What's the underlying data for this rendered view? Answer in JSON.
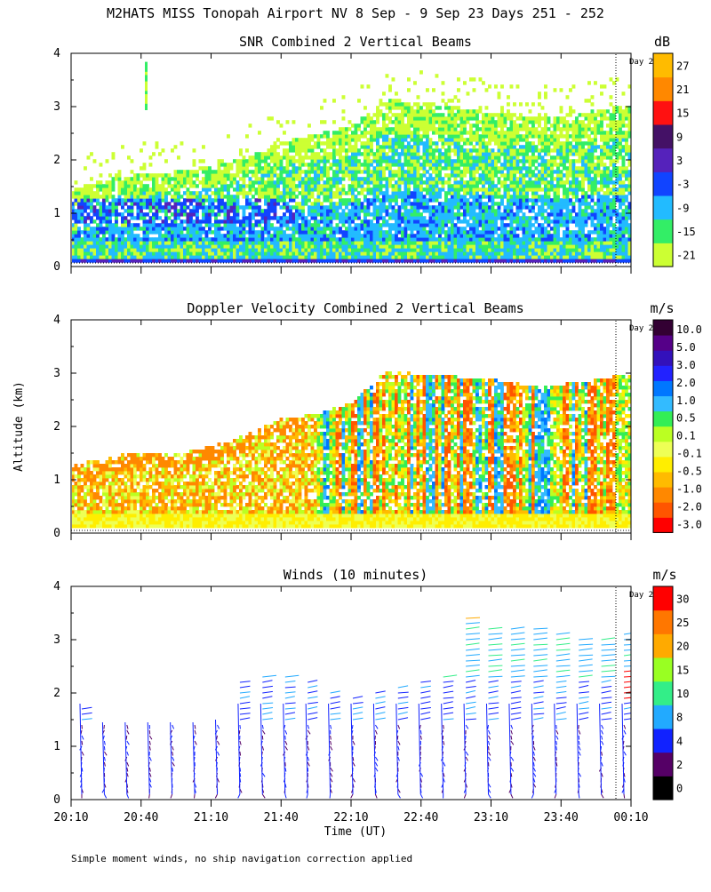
{
  "header": {
    "title": "M2HATS MISS Tonopah Airport NV   8 Sep -  9 Sep 23 Days 251 - 252"
  },
  "y_axis_label": "Altitude (km)",
  "x_axis_label": "Time (UT)",
  "x_ticks": [
    "20:10",
    "20:40",
    "21:10",
    "21:40",
    "22:10",
    "22:40",
    "23:10",
    "23:40",
    "00:10"
  ],
  "y_ticks": [
    "0",
    "1",
    "2",
    "3",
    "4"
  ],
  "day_marker_label": "Day 2",
  "footnote": "Simple moment winds, no ship navigation correction applied",
  "colors": {
    "snr": [
      "#ccff33",
      "#33ee66",
      "#22bbff",
      "#1144ff",
      "#5522bb",
      "#441166",
      "#ff1111",
      "#ff8800",
      "#ffbb00"
    ],
    "doppler": [
      "#ff0000",
      "#ff5500",
      "#ff8800",
      "#ffbb00",
      "#ffee00",
      "#eeff55",
      "#bbff22",
      "#33ee55",
      "#33bbff",
      "#0077ff",
      "#2222ff",
      "#3311bb",
      "#550088",
      "#330033"
    ],
    "winds": [
      "#000000",
      "#550066",
      "#1122ff",
      "#22aaff",
      "#33ee88",
      "#99ff22",
      "#ffaa00",
      "#ff7700",
      "#ff0000"
    ]
  },
  "chart_data": [
    {
      "type": "heatmap",
      "title": "SNR Combined 2 Vertical Beams",
      "unit": "dB",
      "xlabel": "",
      "ylabel": "Altitude (km)",
      "ylim": [
        0,
        4
      ],
      "x_ticks": [
        "20:10",
        "20:40",
        "21:10",
        "21:40",
        "22:10",
        "22:40",
        "23:10",
        "23:40",
        "00:10"
      ],
      "colorbar_ticks": [
        "27",
        "21",
        "15",
        "9",
        "3",
        "-3",
        "-9",
        "-15",
        "-21"
      ],
      "echo_top_km": [
        [
          0.0,
          1.4
        ],
        [
          0.5,
          1.6
        ],
        [
          1.0,
          1.7
        ],
        [
          1.5,
          1.75
        ],
        [
          2.0,
          1.85
        ],
        [
          2.5,
          2.0
        ],
        [
          3.0,
          2.3
        ],
        [
          3.5,
          2.45
        ],
        [
          4.0,
          2.6
        ],
        [
          4.5,
          3.1
        ],
        [
          5.0,
          3.05
        ],
        [
          5.5,
          2.95
        ],
        [
          6.0,
          2.85
        ],
        [
          6.5,
          2.8
        ],
        [
          7.0,
          2.8
        ],
        [
          7.5,
          2.9
        ],
        [
          8.0,
          3.0
        ]
      ]
    },
    {
      "type": "heatmap",
      "title": "Doppler Velocity Combined 2 Vertical Beams",
      "unit": "m/s",
      "xlabel": "",
      "ylabel": "Altitude (km)",
      "ylim": [
        0,
        4
      ],
      "x_ticks": [
        "20:10",
        "20:40",
        "21:10",
        "21:40",
        "22:10",
        "22:40",
        "23:10",
        "23:40",
        "00:10"
      ],
      "colorbar_ticks": [
        "10.0",
        "5.0",
        "3.0",
        "2.0",
        "1.0",
        "0.5",
        "0.1",
        "-0.1",
        "-0.5",
        "-1.0",
        "-2.0",
        "-3.0"
      ],
      "echo_top_km": [
        [
          0.0,
          1.25
        ],
        [
          0.5,
          1.4
        ],
        [
          1.0,
          1.5
        ],
        [
          1.5,
          1.45
        ],
        [
          2.0,
          1.6
        ],
        [
          2.5,
          1.8
        ],
        [
          3.0,
          2.1
        ],
        [
          3.5,
          2.2
        ],
        [
          4.0,
          2.4
        ],
        [
          4.5,
          3.0
        ],
        [
          5.0,
          2.95
        ],
        [
          5.5,
          2.9
        ],
        [
          6.0,
          2.85
        ],
        [
          6.5,
          2.75
        ],
        [
          7.0,
          2.75
        ],
        [
          7.5,
          2.85
        ],
        [
          8.0,
          2.95
        ]
      ]
    },
    {
      "type": "scatter",
      "title": "Winds (10 minutes)",
      "unit": "m/s",
      "xlabel": "Time (UT)",
      "ylabel": "Altitude (km)",
      "ylim": [
        0,
        4
      ],
      "x_ticks": [
        "20:10",
        "20:40",
        "21:10",
        "21:40",
        "22:10",
        "22:40",
        "23:10",
        "23:40",
        "00:10"
      ],
      "colorbar_ticks": [
        "30",
        "25",
        "20",
        "15",
        "10",
        "8",
        "4",
        "2",
        "0"
      ],
      "profile_top_km": [
        1.8,
        1.45,
        1.45,
        1.45,
        1.45,
        1.45,
        1.5,
        2.3,
        2.4,
        2.4,
        2.3,
        2.1,
        2.0,
        2.1,
        2.2,
        2.3,
        2.4,
        3.5,
        3.3,
        3.3,
        3.3,
        3.2,
        3.1,
        3.1,
        3.2
      ]
    }
  ]
}
